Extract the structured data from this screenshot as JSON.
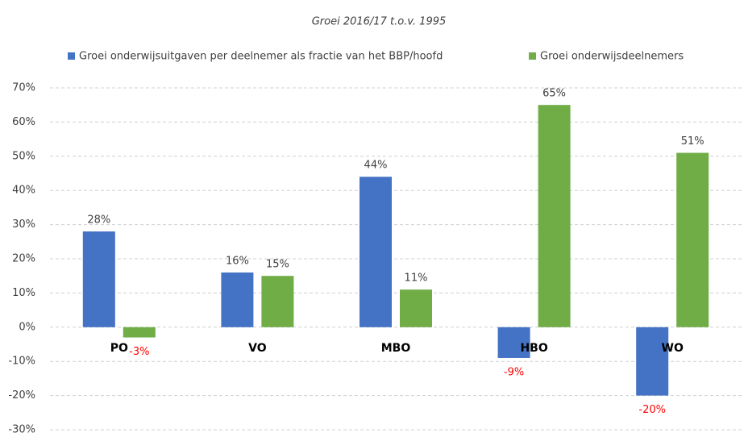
{
  "chart_data": {
    "type": "bar",
    "subtitle": "Groei 2016/17 t.o.v. 1995",
    "categories": [
      "PO",
      "VO",
      "MBO",
      "HBO",
      "WO"
    ],
    "series": [
      {
        "name": "Groei onderwijsuitgaven per deelnemer als fractie van het BBP/hoofd",
        "color": "#4472c4",
        "values": [
          28,
          16,
          44,
          -9,
          -20
        ],
        "value_labels": [
          "28%",
          "16%",
          "44%",
          "-9%",
          "-20%"
        ]
      },
      {
        "name": "Groei onderwijsdeelnemers",
        "color": "#70ad47",
        "values": [
          -3,
          15,
          11,
          65,
          51
        ],
        "value_labels": [
          "-3%",
          "15%",
          "11%",
          "65%",
          "51%"
        ]
      }
    ],
    "ylim": [
      -30,
      70
    ],
    "yticks": [
      {
        "value": -30,
        "label": "-30%"
      },
      {
        "value": -20,
        "label": "-20%"
      },
      {
        "value": -10,
        "label": "-10%"
      },
      {
        "value": 0,
        "label": "0%"
      },
      {
        "value": 10,
        "label": "10%"
      },
      {
        "value": 20,
        "label": "20%"
      },
      {
        "value": 30,
        "label": "30%"
      },
      {
        "value": 40,
        "label": "40%"
      },
      {
        "value": 50,
        "label": "50%"
      },
      {
        "value": 60,
        "label": "60%"
      },
      {
        "value": 70,
        "label": "70%"
      }
    ],
    "grid": true,
    "negative_label_color": "#ff0000",
    "legend": "top"
  }
}
